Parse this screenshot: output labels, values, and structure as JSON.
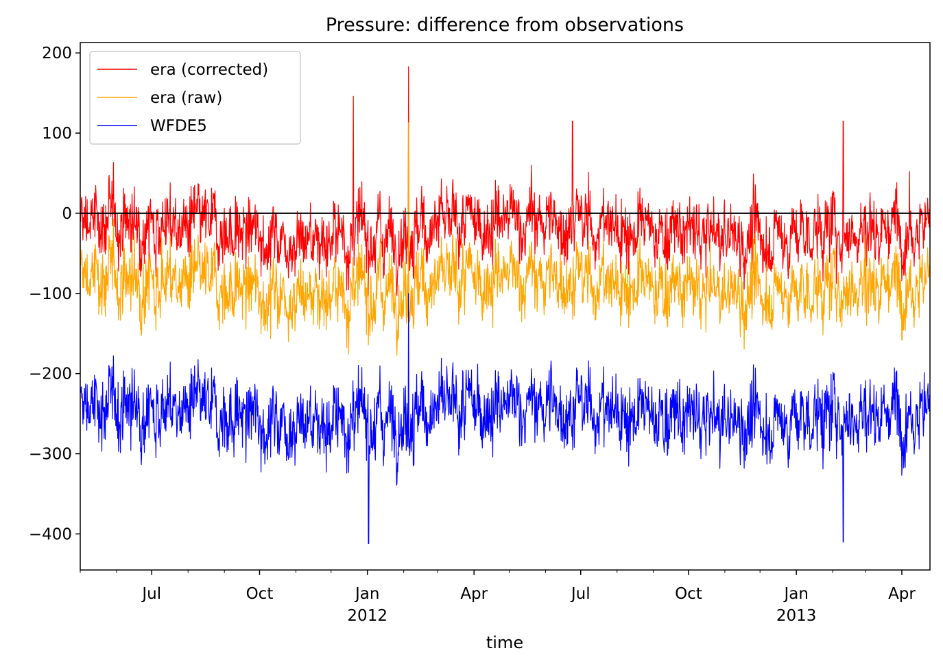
{
  "chart_data": {
    "type": "line",
    "title": "Pressure: difference from observations",
    "xlabel": "time",
    "ylabel": "",
    "x_range": [
      "2011-05-01",
      "2013-04-25"
    ],
    "ylim": [
      -445,
      213
    ],
    "y_ticks": [
      200,
      100,
      0,
      -100,
      -200,
      -300,
      -400
    ],
    "x_major_ticks": [
      {
        "date": "2011-07-01",
        "label": "Jul",
        "sublabel": ""
      },
      {
        "date": "2011-10-01",
        "label": "Oct",
        "sublabel": ""
      },
      {
        "date": "2012-01-01",
        "label": "Jan",
        "sublabel": "2012"
      },
      {
        "date": "2012-04-01",
        "label": "Apr",
        "sublabel": ""
      },
      {
        "date": "2012-07-01",
        "label": "Jul",
        "sublabel": ""
      },
      {
        "date": "2012-10-01",
        "label": "Oct",
        "sublabel": ""
      },
      {
        "date": "2013-01-01",
        "label": "Jan",
        "sublabel": "2013"
      },
      {
        "date": "2013-04-01",
        "label": "Apr",
        "sublabel": ""
      }
    ],
    "grid": false,
    "legend_position": "top-left",
    "reference_line": {
      "y": 0,
      "color": "#000000"
    },
    "series": [
      {
        "name": "era (corrected)",
        "color": "#ff0000",
        "mean": -20,
        "noise": 20,
        "peak_max": 183
      },
      {
        "name": "era (raw)",
        "color": "#ffa500",
        "mean": -90,
        "noise": 20,
        "peak_max": 113
      },
      {
        "name": "WFDE5",
        "color": "#0000ff",
        "mean": -250,
        "noise": 22,
        "peak_max": -100,
        "trough_min": -412
      }
    ],
    "notable_values": [
      {
        "series": "era (corrected)",
        "date": "2012-02-05",
        "value": 183
      },
      {
        "series": "era (corrected)",
        "date": "2011-12-20",
        "value": 146
      },
      {
        "series": "era (corrected)",
        "date": "2013-02-10",
        "value": 115
      },
      {
        "series": "era (corrected)",
        "date": "2012-06-24",
        "value": 115
      },
      {
        "series": "era (raw)",
        "date": "2012-02-05",
        "value": 113
      },
      {
        "series": "WFDE5",
        "date": "2012-01-02",
        "value": -412
      },
      {
        "series": "WFDE5",
        "date": "2013-02-10",
        "value": -410
      },
      {
        "series": "WFDE5",
        "date": "2012-02-05",
        "value": -100
      }
    ]
  }
}
